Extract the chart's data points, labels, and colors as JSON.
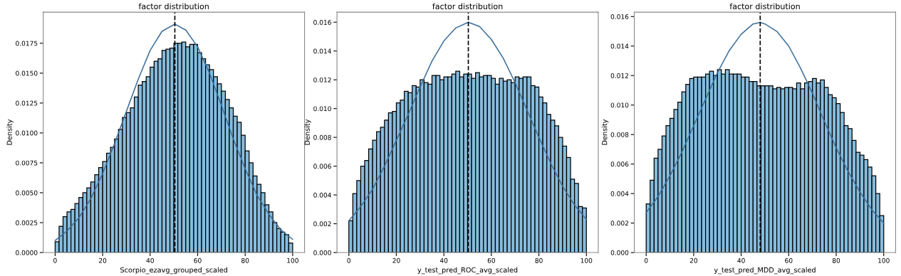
{
  "chart_data": [
    {
      "type": "histogram",
      "title": "factor distribution",
      "xlabel": "Scorpio_ezavg_grouped_scaled",
      "ylabel": "Density",
      "color": "#86bcdd",
      "bins": [
        0,
        1.667,
        3.333,
        5,
        6.667,
        8.333,
        10,
        11.667,
        13.333,
        15,
        16.667,
        18.333,
        20,
        21.667,
        23.333,
        25,
        26.667,
        28.333,
        30,
        31.667,
        33.333,
        35,
        36.667,
        38.333,
        40,
        41.667,
        43.333,
        45,
        46.667,
        48.333,
        50,
        51.667,
        53.333,
        55,
        56.667,
        58.333,
        60,
        61.667,
        63.333,
        65,
        66.667,
        68.333,
        70,
        71.667,
        73.333,
        75,
        76.667,
        78.333,
        80,
        81.667,
        83.333,
        85,
        86.667,
        88.333,
        90,
        91.667,
        93.333,
        95,
        96.667,
        98.333,
        100
      ],
      "values": [
        0.0009,
        0.0022,
        0.003,
        0.0034,
        0.0036,
        0.0041,
        0.0046,
        0.005,
        0.0054,
        0.0059,
        0.0065,
        0.0071,
        0.0076,
        0.0083,
        0.0088,
        0.0095,
        0.0103,
        0.0113,
        0.0117,
        0.0121,
        0.013,
        0.014,
        0.0143,
        0.0147,
        0.0155,
        0.016,
        0.0162,
        0.0169,
        0.017,
        0.0171,
        0.0175,
        0.0175,
        0.0176,
        0.0172,
        0.0174,
        0.0174,
        0.0167,
        0.0162,
        0.0157,
        0.0153,
        0.0147,
        0.0141,
        0.0135,
        0.0128,
        0.0121,
        0.0114,
        0.0109,
        0.0098,
        0.0085,
        0.0075,
        0.0064,
        0.0057,
        0.005,
        0.004,
        0.0034,
        0.0025,
        0.002,
        0.0017,
        0.0015,
        0.0008
      ],
      "series": [
        {
          "type": "line",
          "color": "#3b6e9a",
          "x": [
            0,
            5,
            10,
            15,
            20,
            25,
            30,
            35,
            40,
            45,
            50.4,
            55,
            60,
            65,
            70,
            75,
            80,
            85,
            90,
            95,
            100
          ],
          "values": [
            0.001,
            0.0018,
            0.0029,
            0.0045,
            0.0066,
            0.0091,
            0.0118,
            0.0145,
            0.0169,
            0.0185,
            0.0191,
            0.0186,
            0.0172,
            0.015,
            0.0123,
            0.0095,
            0.007,
            0.0048,
            0.0032,
            0.0019,
            0.0011
          ]
        }
      ],
      "ref_lines": [
        {
          "axis": "x",
          "value": 50.4,
          "color": "#000000",
          "line_style": "dashed"
        }
      ],
      "xlim": [
        -5,
        105
      ],
      "xticks": [
        0,
        20,
        40,
        60,
        80,
        100
      ],
      "ylim": [
        0,
        0.0201
      ],
      "yticks": [
        {
          "value": 0,
          "label": "0.0000"
        },
        {
          "value": 0.0025,
          "label": "0.0025"
        },
        {
          "value": 0.005,
          "label": "0.0050"
        },
        {
          "value": 0.0075,
          "label": "0.0075"
        },
        {
          "value": 0.01,
          "label": "0.0100"
        },
        {
          "value": 0.0125,
          "label": "0.0125"
        },
        {
          "value": 0.015,
          "label": "0.0150"
        },
        {
          "value": 0.0175,
          "label": "0.0175"
        }
      ]
    },
    {
      "type": "histogram",
      "title": "factor distribution",
      "xlabel": "y_test_pred_ROC_avg_scaled",
      "ylabel": "Density",
      "color": "#86bcdd",
      "bins": [
        0,
        1.667,
        3.333,
        5,
        6.667,
        8.333,
        10,
        11.667,
        13.333,
        15,
        16.667,
        18.333,
        20,
        21.667,
        23.333,
        25,
        26.667,
        28.333,
        30,
        31.667,
        33.333,
        35,
        36.667,
        38.333,
        40,
        41.667,
        43.333,
        45,
        46.667,
        48.333,
        50,
        51.667,
        53.333,
        55,
        56.667,
        58.333,
        60,
        61.667,
        63.333,
        65,
        66.667,
        68.333,
        70,
        71.667,
        73.333,
        75,
        76.667,
        78.333,
        80,
        81.667,
        83.333,
        85,
        86.667,
        88.333,
        90,
        91.667,
        93.333,
        95,
        96.667,
        98.333,
        100
      ],
      "values": [
        0.0022,
        0.0041,
        0.005,
        0.006,
        0.0064,
        0.0072,
        0.0078,
        0.0084,
        0.0087,
        0.0092,
        0.0097,
        0.0098,
        0.0104,
        0.0106,
        0.0112,
        0.0111,
        0.0116,
        0.0115,
        0.012,
        0.0118,
        0.0117,
        0.0123,
        0.0123,
        0.012,
        0.0122,
        0.0122,
        0.0124,
        0.0126,
        0.0122,
        0.0124,
        0.0124,
        0.0121,
        0.0125,
        0.0122,
        0.0123,
        0.0123,
        0.0121,
        0.0117,
        0.0121,
        0.0119,
        0.012,
        0.0118,
        0.0122,
        0.0121,
        0.0122,
        0.0122,
        0.0116,
        0.0115,
        0.0108,
        0.0104,
        0.0096,
        0.0092,
        0.0088,
        0.008,
        0.0074,
        0.0066,
        0.0051,
        0.0048,
        0.0032,
        0.0031
      ],
      "series": [
        {
          "type": "line",
          "color": "#3b6e9a",
          "x": [
            0,
            5,
            10,
            15,
            20,
            25,
            30,
            35,
            40,
            45,
            50.3,
            55,
            60,
            65,
            70,
            75,
            80,
            85,
            90,
            95,
            100
          ],
          "values": [
            0.0022,
            0.0032,
            0.0044,
            0.006,
            0.0078,
            0.0096,
            0.0115,
            0.0133,
            0.0147,
            0.0156,
            0.016,
            0.0157,
            0.0148,
            0.0135,
            0.0118,
            0.0099,
            0.008,
            0.0062,
            0.0046,
            0.0033,
            0.0023
          ]
        }
      ],
      "ref_lines": [
        {
          "axis": "x",
          "value": 50.3,
          "color": "#000000",
          "line_style": "dashed"
        }
      ],
      "xlim": [
        -5,
        105
      ],
      "xticks": [
        0,
        20,
        40,
        60,
        80,
        100
      ],
      "ylim": [
        0,
        0.0167
      ],
      "yticks": [
        {
          "value": 0,
          "label": "0.000"
        },
        {
          "value": 0.002,
          "label": "0.002"
        },
        {
          "value": 0.004,
          "label": "0.004"
        },
        {
          "value": 0.006,
          "label": "0.006"
        },
        {
          "value": 0.008,
          "label": "0.008"
        },
        {
          "value": 0.01,
          "label": "0.010"
        },
        {
          "value": 0.012,
          "label": "0.012"
        },
        {
          "value": 0.014,
          "label": "0.014"
        },
        {
          "value": 0.016,
          "label": "0.016"
        }
      ]
    },
    {
      "type": "histogram",
      "title": "factor distribution",
      "xlabel": "y_test_pred_MDD_avg_scaled",
      "ylabel": "Density",
      "color": "#86bcdd",
      "bins": [
        0,
        1.667,
        3.333,
        5,
        6.667,
        8.333,
        10,
        11.667,
        13.333,
        15,
        16.667,
        18.333,
        20,
        21.667,
        23.333,
        25,
        26.667,
        28.333,
        30,
        31.667,
        33.333,
        35,
        36.667,
        38.333,
        40,
        41.667,
        43.333,
        45,
        46.667,
        48.333,
        50,
        51.667,
        53.333,
        55,
        56.667,
        58.333,
        60,
        61.667,
        63.333,
        65,
        66.667,
        68.333,
        70,
        71.667,
        73.333,
        75,
        76.667,
        78.333,
        80,
        81.667,
        83.333,
        85,
        86.667,
        88.333,
        90,
        91.667,
        93.333,
        95,
        96.667,
        98.333,
        100
      ],
      "values": [
        0.0033,
        0.0049,
        0.0064,
        0.007,
        0.0079,
        0.0086,
        0.0091,
        0.0097,
        0.0102,
        0.0109,
        0.0114,
        0.0118,
        0.0119,
        0.0119,
        0.0119,
        0.0121,
        0.0123,
        0.012,
        0.0124,
        0.0121,
        0.0124,
        0.0121,
        0.0121,
        0.0121,
        0.0119,
        0.0119,
        0.0116,
        0.0116,
        0.0113,
        0.0113,
        0.0113,
        0.0113,
        0.0111,
        0.0112,
        0.0111,
        0.0112,
        0.0112,
        0.0111,
        0.0115,
        0.0111,
        0.0115,
        0.0116,
        0.0118,
        0.0115,
        0.0117,
        0.0112,
        0.0107,
        0.0105,
        0.0101,
        0.0095,
        0.0086,
        0.0084,
        0.0076,
        0.0068,
        0.0066,
        0.0063,
        0.0058,
        0.0052,
        0.004,
        0.0025
      ],
      "series": [
        {
          "type": "line",
          "color": "#3b6e9a",
          "x": [
            0,
            5,
            10,
            15,
            20,
            25,
            30,
            35,
            40,
            45,
            48,
            50,
            55,
            60,
            65,
            70,
            75,
            80,
            85,
            90,
            95,
            100
          ],
          "values": [
            0.0027,
            0.0038,
            0.0052,
            0.0068,
            0.0086,
            0.0104,
            0.0122,
            0.0137,
            0.0148,
            0.0155,
            0.0156,
            0.0155,
            0.015,
            0.014,
            0.0125,
            0.0108,
            0.0089,
            0.0071,
            0.0055,
            0.0041,
            0.0029,
            0.002
          ]
        }
      ],
      "ref_lines": [
        {
          "axis": "x",
          "value": 48,
          "color": "#000000",
          "line_style": "dashed"
        }
      ],
      "xlim": [
        -5,
        105
      ],
      "xticks": [
        0,
        20,
        40,
        60,
        80,
        100
      ],
      "ylim": [
        0,
        0.0163
      ],
      "yticks": [
        {
          "value": 0,
          "label": "0.000"
        },
        {
          "value": 0.002,
          "label": "0.002"
        },
        {
          "value": 0.004,
          "label": "0.004"
        },
        {
          "value": 0.006,
          "label": "0.006"
        },
        {
          "value": 0.008,
          "label": "0.008"
        },
        {
          "value": 0.01,
          "label": "0.010"
        },
        {
          "value": 0.012,
          "label": "0.012"
        },
        {
          "value": 0.014,
          "label": "0.014"
        },
        {
          "value": 0.016,
          "label": "0.016"
        }
      ]
    }
  ]
}
